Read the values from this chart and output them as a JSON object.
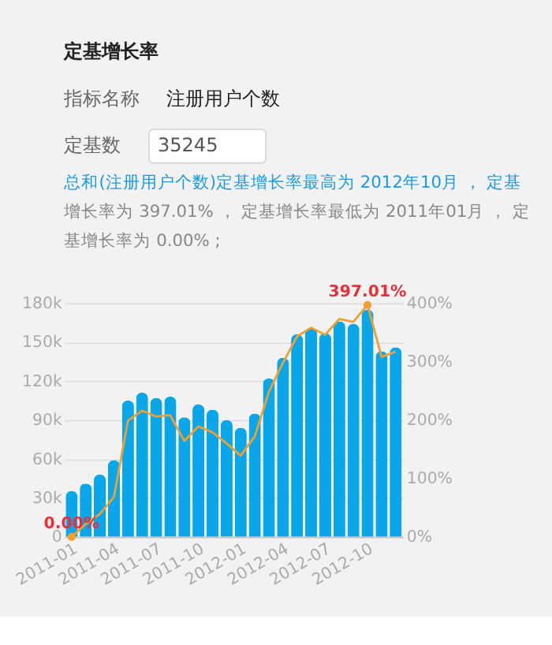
{
  "chart_data": [
    {
      "type": "other",
      "title": "定基增长率",
      "annotations": [
        "指标名称",
        "注册用户个数",
        "定基数",
        "35245",
        "总和(注册用户个数)定基增长率最高为 2012年10月 ， 定基增长率为 397.01% ， 定基增长率最低为 2011年01月 ， 定基增长率为 0.00% ;"
      ]
    },
    {
      "type": "bar",
      "categories": [
        "2011-01",
        null,
        null,
        "2011-04",
        null,
        null,
        "2011-07",
        null,
        null,
        "2011-10",
        null,
        null,
        "2012-01",
        null,
        null,
        "2012-04",
        null,
        null,
        "2012-07",
        null,
        null,
        "2012-10",
        null,
        null
      ],
      "series": [
        {
          "type": "bar",
          "color": "#0aa6ea",
          "values": [
            35245,
            41000,
            48000,
            59000,
            105000,
            111000,
            107000,
            108000,
            92000,
            102000,
            98000,
            90000,
            84000,
            95000,
            122000,
            138000,
            156000,
            161000,
            157000,
            166000,
            164000,
            175000,
            143000,
            146000
          ]
        },
        {
          "type": "line",
          "axis": "y2",
          "color": "#f0a030",
          "values": [
            0,
            22,
            39,
            68,
            199,
            216,
            206,
            208,
            164,
            189,
            179,
            160,
            139,
            172,
            248,
            298,
            343,
            358,
            346,
            373,
            368,
            397.01,
            308,
            317
          ],
          "value_labels": [
            "0.00%",
            null,
            null,
            null,
            null,
            null,
            null,
            null,
            null,
            null,
            null,
            null,
            null,
            null,
            null,
            null,
            null,
            null,
            null,
            null,
            null,
            "397.01%",
            null,
            null
          ]
        }
      ],
      "ylim": [
        0,
        180000
      ],
      "yticks": [
        0,
        {
          "value": 30000,
          "label": "30k"
        },
        {
          "value": 60000,
          "label": "60k"
        },
        {
          "value": 90000,
          "label": "90k"
        },
        {
          "value": 120000,
          "label": "120k"
        },
        {
          "value": 150000,
          "label": "150k"
        },
        {
          "value": 180000,
          "label": "180k"
        }
      ],
      "y2lim": [
        0,
        400
      ],
      "y2ticks": [
        {
          "value": 0,
          "label": "0%"
        },
        {
          "value": 100,
          "label": "100%"
        },
        {
          "value": 200,
          "label": "200%"
        },
        {
          "value": 300,
          "label": "300%"
        },
        {
          "value": 400,
          "label": "400%"
        }
      ],
      "grid": "y"
    }
  ]
}
